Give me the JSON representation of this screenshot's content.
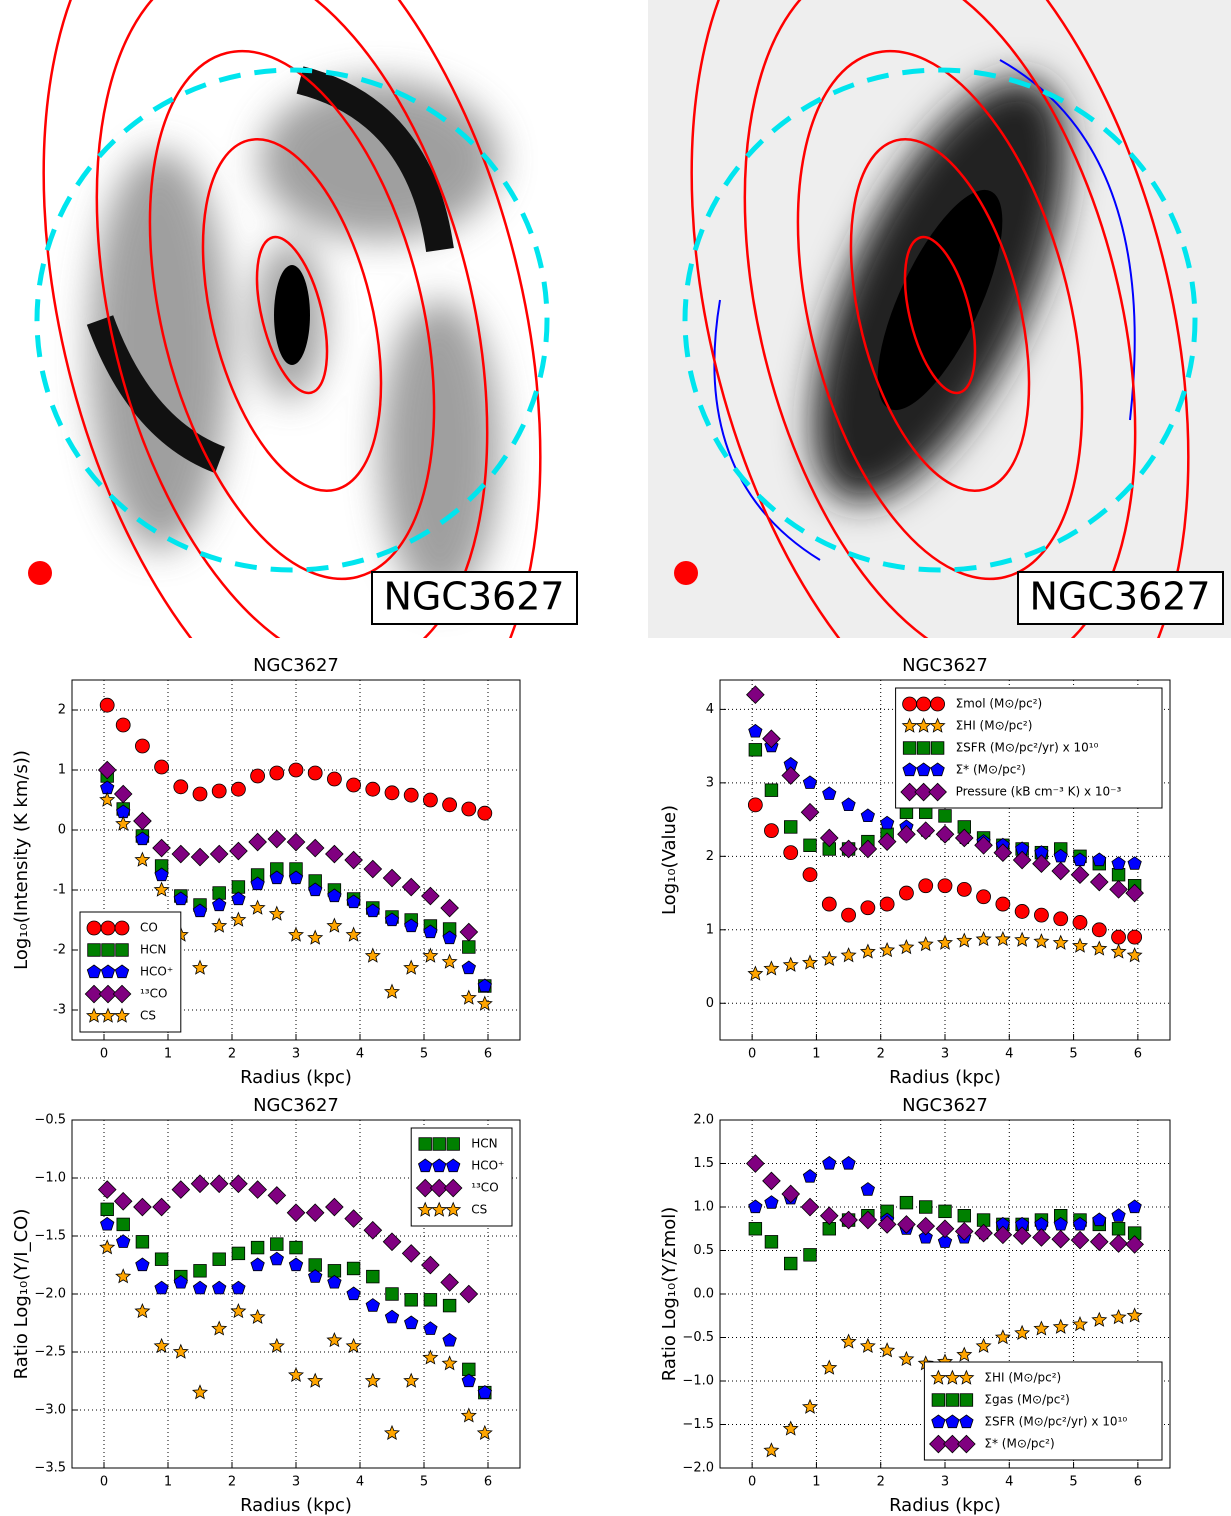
{
  "images": [
    {
      "label": "NGC3627"
    },
    {
      "label": "NGC3627"
    }
  ],
  "chart_data": [
    {
      "type": "scatter",
      "title": "NGC3627",
      "xlabel": "Radius (kpc)",
      "ylabel": "Log₁₀(Intensity (K km/s))",
      "legend": "lower left",
      "grid": true,
      "xlim": [
        -0.5,
        6.5
      ],
      "xticks": [
        0,
        1,
        2,
        3,
        4,
        5,
        6
      ],
      "ylim": [
        -3.5,
        2.5
      ],
      "yticks": [
        -3,
        -2,
        -1,
        0,
        1,
        2
      ],
      "x": [
        0.05,
        0.3,
        0.6,
        0.9,
        1.2,
        1.5,
        1.8,
        2.1,
        2.4,
        2.7,
        3.0,
        3.3,
        3.6,
        3.9,
        4.2,
        4.5,
        4.8,
        5.1,
        5.4,
        5.7,
        5.95
      ],
      "series": [
        {
          "name": "CO",
          "color": "#ff0000",
          "marker": "circle",
          "values": [
            2.08,
            1.75,
            1.4,
            1.05,
            0.72,
            0.6,
            0.65,
            0.68,
            0.9,
            0.95,
            1.0,
            0.95,
            0.85,
            0.75,
            0.68,
            0.62,
            0.58,
            0.5,
            0.42,
            0.35,
            0.28
          ]
        },
        {
          "name": "HCN",
          "color": "#008000",
          "marker": "square",
          "values": [
            0.9,
            0.35,
            -0.1,
            -0.6,
            -1.1,
            -1.25,
            -1.05,
            -0.95,
            -0.75,
            -0.65,
            -0.65,
            -0.85,
            -1.0,
            -1.15,
            -1.3,
            -1.45,
            -1.5,
            -1.6,
            -1.65,
            -1.95,
            -2.6
          ]
        },
        {
          "name": "HCO⁺",
          "color": "#0000ff",
          "marker": "pentagon",
          "values": [
            0.7,
            0.3,
            -0.15,
            -0.75,
            -1.15,
            -1.35,
            -1.25,
            -1.15,
            -0.9,
            -0.8,
            -0.8,
            -1.0,
            -1.1,
            -1.2,
            -1.35,
            -1.5,
            -1.6,
            -1.7,
            -1.8,
            -2.3,
            -2.6
          ]
        },
        {
          "name": "¹³CO",
          "color": "#800080",
          "marker": "diamond",
          "values": [
            1.0,
            0.6,
            0.15,
            -0.3,
            -0.4,
            -0.45,
            -0.4,
            -0.35,
            -0.2,
            -0.15,
            -0.2,
            -0.3,
            -0.4,
            -0.5,
            -0.65,
            -0.8,
            -0.95,
            -1.1,
            -1.3,
            -1.7,
            null
          ]
        },
        {
          "name": "CS",
          "color": "#ffa500",
          "marker": "star",
          "values": [
            0.5,
            0.1,
            -0.5,
            -1.0,
            -1.75,
            -2.3,
            -1.6,
            -1.5,
            -1.3,
            -1.4,
            -1.75,
            -1.8,
            -1.6,
            -1.75,
            -2.1,
            -2.7,
            -2.3,
            -2.1,
            -2.2,
            -2.8,
            -2.9
          ]
        }
      ]
    },
    {
      "type": "scatter",
      "title": "NGC3627",
      "xlabel": "Radius (kpc)",
      "ylabel": "Log₁₀(Value)",
      "legend": "upper right",
      "grid": true,
      "xlim": [
        -0.5,
        6.5
      ],
      "xticks": [
        0,
        1,
        2,
        3,
        4,
        5,
        6
      ],
      "ylim": [
        -0.5,
        4.4
      ],
      "yticks": [
        0,
        1,
        2,
        3,
        4
      ],
      "x": [
        0.05,
        0.3,
        0.6,
        0.9,
        1.2,
        1.5,
        1.8,
        2.1,
        2.4,
        2.7,
        3.0,
        3.3,
        3.6,
        3.9,
        4.2,
        4.5,
        4.8,
        5.1,
        5.4,
        5.7,
        5.95
      ],
      "series": [
        {
          "name": "Σmol (M⊙/pc²)",
          "color": "#ff0000",
          "marker": "circle",
          "values": [
            2.7,
            2.35,
            2.05,
            1.75,
            1.35,
            1.2,
            1.3,
            1.35,
            1.5,
            1.6,
            1.6,
            1.55,
            1.45,
            1.35,
            1.25,
            1.2,
            1.15,
            1.1,
            1.0,
            0.9,
            0.9
          ]
        },
        {
          "name": "ΣHI (M⊙/pc²)",
          "color": "#ffa500",
          "marker": "star",
          "values": [
            0.4,
            0.47,
            0.52,
            0.55,
            0.6,
            0.65,
            0.7,
            0.72,
            0.76,
            0.8,
            0.82,
            0.85,
            0.87,
            0.87,
            0.86,
            0.84,
            0.82,
            0.78,
            0.74,
            0.7,
            0.65
          ]
        },
        {
          "name": "ΣSFR (M⊙/pc²/yr) x 10¹⁰",
          "color": "#008000",
          "marker": "square",
          "values": [
            3.45,
            2.9,
            2.4,
            2.15,
            2.1,
            2.1,
            2.2,
            2.3,
            2.6,
            2.6,
            2.55,
            2.4,
            2.25,
            2.15,
            2.1,
            2.05,
            2.1,
            2.0,
            1.9,
            1.75,
            1.6
          ]
        },
        {
          "name": "Σ* (M⊙/pc²)",
          "color": "#0000ff",
          "marker": "pentagon",
          "values": [
            3.7,
            3.5,
            3.25,
            3.0,
            2.85,
            2.7,
            2.55,
            2.45,
            2.4,
            2.35,
            2.3,
            2.25,
            2.2,
            2.15,
            2.1,
            2.05,
            2.0,
            1.95,
            1.95,
            1.9,
            1.9
          ]
        },
        {
          "name": "Pressure (kB cm⁻³ K) x 10⁻³",
          "color": "#800080",
          "marker": "diamond",
          "values": [
            4.2,
            3.6,
            3.1,
            2.6,
            2.25,
            2.1,
            2.1,
            2.2,
            2.3,
            2.35,
            2.3,
            2.25,
            2.15,
            2.05,
            1.95,
            1.9,
            1.8,
            1.75,
            1.65,
            1.55,
            1.5
          ]
        }
      ]
    },
    {
      "type": "scatter",
      "title": "NGC3627",
      "xlabel": "Radius (kpc)",
      "ylabel": "Ratio Log₁₀(Y/I_CO)",
      "legend": "upper right",
      "grid": true,
      "xlim": [
        -0.5,
        6.5
      ],
      "xticks": [
        0,
        1,
        2,
        3,
        4,
        5,
        6
      ],
      "ylim": [
        -3.5,
        -0.5
      ],
      "yticks": [
        {
          "value": -3.5,
          "label": "−3.5"
        },
        {
          "value": -3.0,
          "label": "−3.0"
        },
        {
          "value": -2.5,
          "label": "−2.5"
        },
        {
          "value": -2.0,
          "label": "−2.0"
        },
        {
          "value": -1.5,
          "label": "−1.5"
        },
        {
          "value": -1.0,
          "label": "−1.0"
        },
        {
          "value": -0.5,
          "label": "−0.5"
        }
      ],
      "x": [
        0.05,
        0.3,
        0.6,
        0.9,
        1.2,
        1.5,
        1.8,
        2.1,
        2.4,
        2.7,
        3.0,
        3.3,
        3.6,
        3.9,
        4.2,
        4.5,
        4.8,
        5.1,
        5.4,
        5.7,
        5.95
      ],
      "series": [
        {
          "name": "HCN",
          "color": "#008000",
          "marker": "square",
          "values": [
            -1.27,
            -1.4,
            -1.55,
            -1.7,
            -1.85,
            -1.8,
            -1.7,
            -1.65,
            -1.6,
            -1.57,
            -1.6,
            -1.75,
            -1.8,
            -1.78,
            -1.85,
            -2.0,
            -2.05,
            -2.05,
            -2.1,
            -2.65,
            -2.85
          ]
        },
        {
          "name": "HCO⁺",
          "color": "#0000ff",
          "marker": "pentagon",
          "values": [
            -1.4,
            -1.55,
            -1.75,
            -1.95,
            -1.9,
            -1.95,
            -1.95,
            -1.95,
            -1.75,
            -1.7,
            -1.75,
            -1.85,
            -1.9,
            -2.0,
            -2.1,
            -2.2,
            -2.25,
            -2.3,
            -2.4,
            -2.75,
            -2.85
          ]
        },
        {
          "name": "¹³CO",
          "color": "#800080",
          "marker": "diamond",
          "values": [
            -1.1,
            -1.2,
            -1.25,
            -1.25,
            -1.1,
            -1.05,
            -1.05,
            -1.05,
            -1.1,
            -1.15,
            -1.3,
            -1.3,
            -1.25,
            -1.35,
            -1.45,
            -1.55,
            -1.65,
            -1.75,
            -1.9,
            -2.0,
            null
          ]
        },
        {
          "name": "CS",
          "color": "#ffa500",
          "marker": "star",
          "values": [
            -1.6,
            -1.85,
            -2.15,
            -2.45,
            -2.5,
            -2.85,
            -2.3,
            -2.15,
            -2.2,
            -2.45,
            -2.7,
            -2.75,
            -2.4,
            -2.45,
            -2.75,
            -3.2,
            -2.75,
            -2.55,
            -2.6,
            -3.05,
            -3.2
          ]
        }
      ]
    },
    {
      "type": "scatter",
      "title": "NGC3627",
      "xlabel": "Radius (kpc)",
      "ylabel": "Ratio Log₁₀(Y/Σmol)",
      "legend": "lower right",
      "grid": true,
      "xlim": [
        -0.5,
        6.5
      ],
      "xticks": [
        0,
        1,
        2,
        3,
        4,
        5,
        6
      ],
      "ylim": [
        -2.0,
        2.0
      ],
      "yticks": [
        {
          "value": -2.0,
          "label": "−2.0"
        },
        {
          "value": -1.5,
          "label": "−1.5"
        },
        {
          "value": -1.0,
          "label": "−1.0"
        },
        {
          "value": -0.5,
          "label": "−0.5"
        },
        {
          "value": 0.0,
          "label": "0.0"
        },
        {
          "value": 0.5,
          "label": "0.5"
        },
        {
          "value": 1.0,
          "label": "1.0"
        },
        {
          "value": 1.5,
          "label": "1.5"
        },
        {
          "value": 2.0,
          "label": "2.0"
        }
      ],
      "x": [
        0.05,
        0.3,
        0.6,
        0.9,
        1.2,
        1.5,
        1.8,
        2.1,
        2.4,
        2.7,
        3.0,
        3.3,
        3.6,
        3.9,
        4.2,
        4.5,
        4.8,
        5.1,
        5.4,
        5.7,
        5.95
      ],
      "series": [
        {
          "name": "ΣHI (M⊙/pc²)",
          "color": "#ffa500",
          "marker": "star",
          "values": [
            null,
            -1.8,
            -1.55,
            -1.3,
            -0.85,
            -0.55,
            -0.6,
            -0.65,
            -0.75,
            -0.8,
            -0.78,
            -0.7,
            -0.6,
            -0.5,
            -0.45,
            -0.4,
            -0.38,
            -0.35,
            -0.3,
            -0.27,
            -0.25
          ]
        },
        {
          "name": "Σgas (M⊙/pc²)",
          "color": "#008000",
          "marker": "square",
          "values": [
            0.75,
            0.6,
            0.35,
            0.45,
            0.75,
            0.85,
            0.9,
            0.95,
            1.05,
            1.0,
            0.95,
            0.9,
            0.85,
            0.8,
            0.8,
            0.85,
            0.9,
            0.85,
            0.8,
            0.75,
            0.7
          ]
        },
        {
          "name": "ΣSFR (M⊙/pc²/yr) x 10¹⁰",
          "color": "#0000ff",
          "marker": "pentagon",
          "values": [
            1.0,
            1.05,
            1.1,
            1.35,
            1.5,
            1.5,
            1.2,
            0.85,
            0.75,
            0.65,
            0.6,
            0.65,
            0.7,
            0.8,
            0.8,
            0.8,
            0.8,
            0.8,
            0.85,
            0.9,
            1.0
          ]
        },
        {
          "name": "Σ* (M⊙/pc²)",
          "color": "#800080",
          "marker": "diamond",
          "values": [
            1.5,
            1.3,
            1.15,
            1.0,
            0.9,
            0.85,
            0.85,
            0.8,
            0.8,
            0.78,
            0.75,
            0.72,
            0.7,
            0.68,
            0.67,
            0.65,
            0.63,
            0.62,
            0.6,
            0.58,
            0.57
          ]
        }
      ]
    }
  ]
}
